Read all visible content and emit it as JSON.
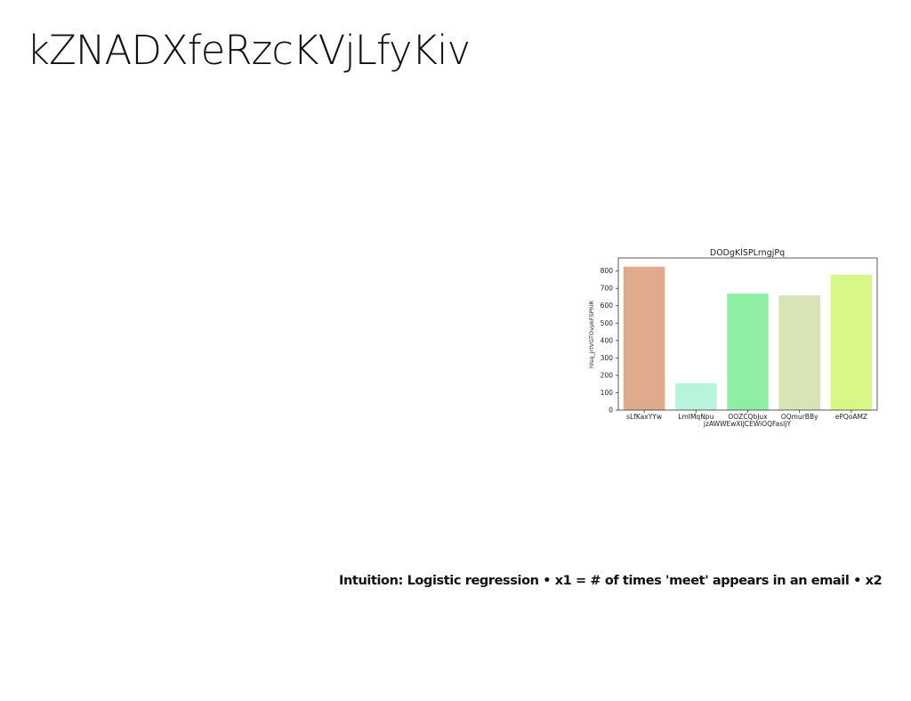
{
  "slide": {
    "title": "kZNADXfeRzcKVjLfyKiv",
    "caption": "Intuition: Logistic regression • x1 = # of times 'meet' appears in an email • x2"
  },
  "chart_data": {
    "type": "bar",
    "title": "DODgKlSPLrngjPq",
    "xlabel": "jzAWWEwXIJCEWiOQFasIjY",
    "ylabel": "hlsq_jrtVGTOvpkFSPhiR",
    "categories": [
      "sLfKaxYYw",
      "LmIMqNpu",
      "OOZCQbJux",
      "OQmurBBy",
      "ePQoAMZ"
    ],
    "values": [
      825,
      155,
      670,
      660,
      778
    ],
    "colors": [
      "#dfab8c",
      "#b8f3dc",
      "#8eeea4",
      "#d8e4b6",
      "#d7f887"
    ],
    "ylim": [
      0,
      875
    ],
    "yticks": [
      0,
      100,
      200,
      300,
      400,
      500,
      600,
      700,
      800
    ],
    "grid": false
  }
}
